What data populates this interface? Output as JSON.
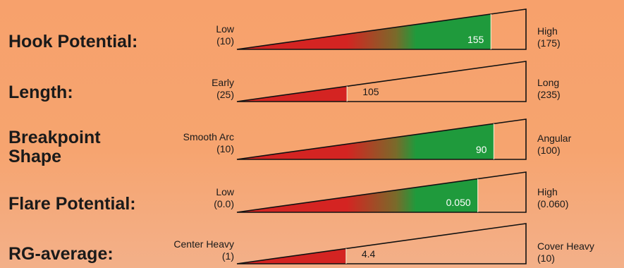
{
  "colors": {
    "background": "#f6a46f",
    "low": "#d42422",
    "mid": "#7a6a2a",
    "high": "#1f9a3c",
    "outline": "#111111"
  },
  "gauges": [
    {
      "title": "Hook Potential:",
      "low_label": "Low",
      "low_value": "(10)",
      "high_label": "High",
      "high_value": "(175)",
      "value": 155,
      "value_label": "155",
      "min": 10,
      "max": 175
    },
    {
      "title": "Length:",
      "low_label": "Early",
      "low_value": "(25)",
      "high_label": "Long",
      "high_value": "(235)",
      "value": 105,
      "value_label": "105",
      "min": 25,
      "max": 235
    },
    {
      "title": "Breakpoint Shape",
      "low_label": "Smooth Arc",
      "low_value": "(10)",
      "high_label": "Angular",
      "high_value": "(100)",
      "value": 90,
      "value_label": "90",
      "min": 10,
      "max": 100
    },
    {
      "title": "Flare Potential:",
      "low_label": "Low",
      "low_value": "(0.0)",
      "high_label": "High",
      "high_value": "(0.060)",
      "value": 0.05,
      "value_label": "0.050",
      "min": 0.0,
      "max": 0.06
    },
    {
      "title": "RG-average:",
      "low_label": "Center Heavy",
      "low_value": "(1)",
      "high_label": "Cover Heavy",
      "high_value": "(10)",
      "value": 4.4,
      "value_label": "4.4",
      "min": 1,
      "max": 10
    }
  ]
}
